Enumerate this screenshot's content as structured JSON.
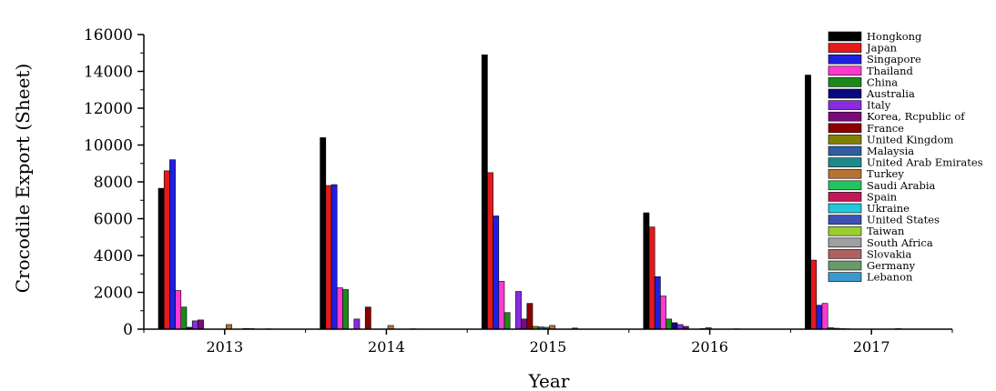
{
  "chart_data": {
    "type": "bar",
    "title": "",
    "xlabel": "Year",
    "ylabel": "Crocodile Export (Sheet)",
    "ylim": [
      0,
      16000
    ],
    "yticks": [
      0,
      2000,
      4000,
      6000,
      8000,
      10000,
      12000,
      14000,
      16000
    ],
    "grid": false,
    "legend_position": "top-right",
    "categories": [
      "2013",
      "2014",
      "2015",
      "2016",
      "2017"
    ],
    "series": [
      {
        "name": "Hongkong",
        "color": "#000000",
        "values": [
          7650,
          10400,
          14900,
          6320,
          13800
        ]
      },
      {
        "name": "Japan",
        "color": "#e31a1c",
        "values": [
          8600,
          7800,
          8500,
          5550,
          3750
        ]
      },
      {
        "name": "Singapore",
        "color": "#1f1fe0",
        "values": [
          9200,
          7850,
          6150,
          2850,
          1300
        ]
      },
      {
        "name": "Thailand",
        "color": "#ff3ad0",
        "values": [
          2100,
          2250,
          2600,
          1800,
          1400
        ]
      },
      {
        "name": "China",
        "color": "#1b8a1b",
        "values": [
          1200,
          2150,
          900,
          550,
          80
        ]
      },
      {
        "name": "Australia",
        "color": "#0a0a80",
        "values": [
          100,
          0,
          0,
          350,
          50
        ]
      },
      {
        "name": "Italy",
        "color": "#8a2be2",
        "values": [
          450,
          550,
          2050,
          250,
          30
        ]
      },
      {
        "name": "Korea, Rcpublic of",
        "color": "#7a0a7a",
        "values": [
          500,
          0,
          550,
          150,
          20
        ]
      },
      {
        "name": "France",
        "color": "#8b0000",
        "values": [
          0,
          1200,
          1400,
          0,
          0
        ]
      },
      {
        "name": "United Kingdom",
        "color": "#808000",
        "values": [
          0,
          0,
          150,
          0,
          0
        ]
      },
      {
        "name": "Malaysia",
        "color": "#2f5fa0",
        "values": [
          0,
          0,
          120,
          30,
          0
        ]
      },
      {
        "name": "United Arab Emirates",
        "color": "#1f8a8a",
        "values": [
          0,
          0,
          100,
          80,
          0
        ]
      },
      {
        "name": "Turkey",
        "color": "#b87333",
        "values": [
          250,
          200,
          200,
          0,
          0
        ]
      },
      {
        "name": "Saudi Arabia",
        "color": "#22c55e",
        "values": [
          0,
          0,
          0,
          0,
          0
        ]
      },
      {
        "name": "Spain",
        "color": "#c2185b",
        "values": [
          0,
          0,
          0,
          0,
          0
        ]
      },
      {
        "name": "Ukraine",
        "color": "#26c6da",
        "values": [
          40,
          0,
          0,
          0,
          0
        ]
      },
      {
        "name": "United States",
        "color": "#3f51b5",
        "values": [
          30,
          20,
          60,
          20,
          30
        ]
      },
      {
        "name": "Taiwan",
        "color": "#9acd32",
        "values": [
          0,
          0,
          0,
          0,
          0
        ]
      },
      {
        "name": "South Africa",
        "color": "#a0a0a0",
        "values": [
          0,
          0,
          0,
          0,
          0
        ]
      },
      {
        "name": "Slovakia",
        "color": "#b06060",
        "values": [
          20,
          0,
          0,
          0,
          0
        ]
      },
      {
        "name": "Germany",
        "color": "#6a9a6a",
        "values": [
          0,
          0,
          0,
          0,
          0
        ]
      },
      {
        "name": "Lebanon",
        "color": "#3a9ad0",
        "values": [
          0,
          0,
          0,
          0,
          0
        ]
      }
    ]
  }
}
